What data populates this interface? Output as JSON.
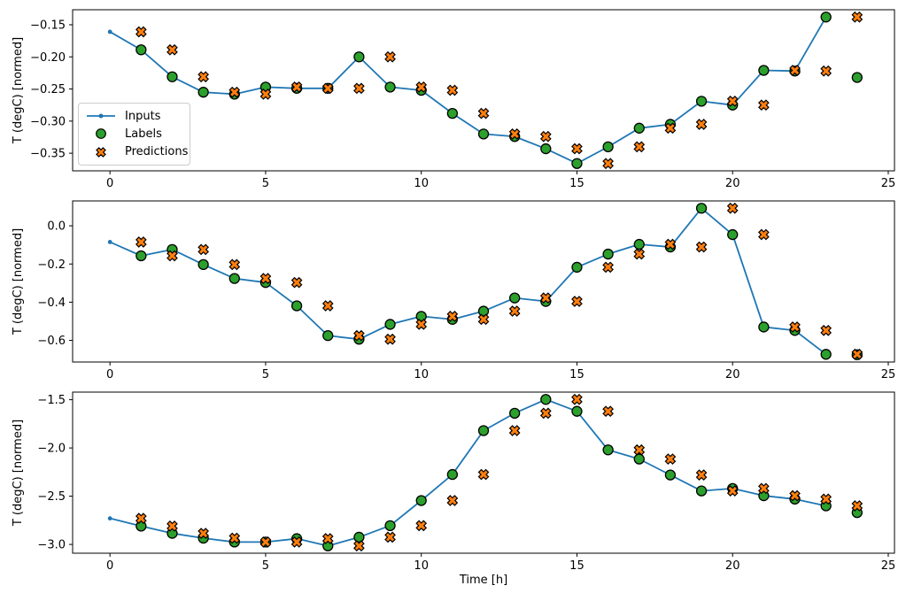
{
  "figure": {
    "xlabel": "Time [h]",
    "ylabel": "T (degC) [normed]",
    "background": "#ffffff",
    "text_color": "#000000",
    "colors": {
      "inputs": "#1f77b4",
      "labels": "#2ca02c",
      "predictions": "#ff7f0e",
      "marker_edge": "#000000",
      "spine": "#000000",
      "legend_border": "#cccccc"
    },
    "legend": {
      "visible": true,
      "position": "lower left of subplot 1",
      "items": [
        {
          "label": "Inputs",
          "marker": "line-with-dot"
        },
        {
          "label": "Labels",
          "marker": "circle"
        },
        {
          "label": "Predictions",
          "marker": "X"
        }
      ]
    }
  },
  "chart_data": [
    {
      "type": "line",
      "title": "",
      "xlabel": "",
      "ylabel": "T (degC) [normed]",
      "grid": false,
      "xlim": [
        -1.2,
        25.2
      ],
      "ylim": [
        -0.377,
        -0.127
      ],
      "x_ticks": [
        0,
        5,
        10,
        15,
        20,
        25
      ],
      "x_tick_labels": [
        "0",
        "5",
        "10",
        "15",
        "20",
        "25"
      ],
      "y_ticks": [
        -0.15,
        -0.2,
        -0.25,
        -0.3,
        -0.35
      ],
      "y_tick_labels": [
        "−0.15",
        "−0.20",
        "−0.25",
        "−0.30",
        "−0.35"
      ],
      "legend": true,
      "series": [
        {
          "name": "Inputs",
          "marker": "dot-line",
          "color": "#1f77b4",
          "x": [
            0,
            1,
            2,
            3,
            4,
            5,
            6,
            7,
            8,
            9,
            10,
            11,
            12,
            13,
            14,
            15,
            16,
            17,
            18,
            19,
            20,
            21,
            22,
            23
          ],
          "y": [
            -0.161,
            -0.189,
            -0.231,
            -0.255,
            -0.258,
            -0.247,
            -0.249,
            -0.249,
            -0.2,
            -0.247,
            -0.252,
            -0.288,
            -0.32,
            -0.324,
            -0.343,
            -0.366,
            -0.34,
            -0.311,
            -0.305,
            -0.269,
            -0.275,
            -0.221,
            -0.222,
            -0.138
          ]
        },
        {
          "name": "Labels",
          "marker": "circle",
          "color": "#2ca02c",
          "x": [
            1,
            2,
            3,
            4,
            5,
            6,
            7,
            8,
            9,
            10,
            11,
            12,
            13,
            14,
            15,
            16,
            17,
            18,
            19,
            20,
            21,
            22,
            23,
            24
          ],
          "y": [
            -0.189,
            -0.231,
            -0.255,
            -0.258,
            -0.247,
            -0.249,
            -0.249,
            -0.2,
            -0.247,
            -0.252,
            -0.288,
            -0.32,
            -0.324,
            -0.343,
            -0.366,
            -0.34,
            -0.311,
            -0.305,
            -0.269,
            -0.275,
            -0.221,
            -0.222,
            -0.138,
            -0.232
          ]
        },
        {
          "name": "Predictions",
          "marker": "X",
          "color": "#ff7f0e",
          "x": [
            1,
            2,
            3,
            4,
            5,
            6,
            7,
            8,
            9,
            10,
            11,
            12,
            13,
            14,
            15,
            16,
            17,
            18,
            19,
            20,
            21,
            22,
            23,
            24
          ],
          "y": [
            -0.161,
            -0.189,
            -0.231,
            -0.255,
            -0.258,
            -0.247,
            -0.249,
            -0.249,
            -0.2,
            -0.247,
            -0.252,
            -0.288,
            -0.32,
            -0.324,
            -0.343,
            -0.366,
            -0.34,
            -0.311,
            -0.305,
            -0.269,
            -0.275,
            -0.221,
            -0.222,
            -0.138
          ]
        }
      ]
    },
    {
      "type": "line",
      "title": "",
      "xlabel": "",
      "ylabel": "T (degC) [normed]",
      "grid": false,
      "xlim": [
        -1.2,
        25.2
      ],
      "ylim": [
        -0.713,
        0.13
      ],
      "x_ticks": [
        0,
        5,
        10,
        15,
        20,
        25
      ],
      "x_tick_labels": [
        "0",
        "5",
        "10",
        "15",
        "20",
        "25"
      ],
      "y_ticks": [
        0.0,
        -0.2,
        -0.4,
        -0.6
      ],
      "y_tick_labels": [
        "0.0",
        "−0.2",
        "−0.4",
        "−0.6"
      ],
      "legend": false,
      "series": [
        {
          "name": "Inputs",
          "marker": "dot-line",
          "color": "#1f77b4",
          "x": [
            0,
            1,
            2,
            3,
            4,
            5,
            6,
            7,
            8,
            9,
            10,
            11,
            12,
            13,
            14,
            15,
            16,
            17,
            18,
            19,
            20,
            21,
            22,
            23
          ],
          "y": [
            -0.085,
            -0.157,
            -0.124,
            -0.203,
            -0.276,
            -0.297,
            -0.419,
            -0.575,
            -0.594,
            -0.516,
            -0.474,
            -0.49,
            -0.447,
            -0.378,
            -0.396,
            -0.217,
            -0.148,
            -0.097,
            -0.111,
            0.092,
            -0.046,
            -0.53,
            -0.548,
            -0.673
          ]
        },
        {
          "name": "Labels",
          "marker": "circle",
          "color": "#2ca02c",
          "x": [
            1,
            2,
            3,
            4,
            5,
            6,
            7,
            8,
            9,
            10,
            11,
            12,
            13,
            14,
            15,
            16,
            17,
            18,
            19,
            20,
            21,
            22,
            23,
            24
          ],
          "y": [
            -0.157,
            -0.124,
            -0.203,
            -0.276,
            -0.297,
            -0.419,
            -0.575,
            -0.594,
            -0.516,
            -0.474,
            -0.49,
            -0.447,
            -0.378,
            -0.396,
            -0.217,
            -0.148,
            -0.097,
            -0.111,
            0.092,
            -0.046,
            -0.53,
            -0.548,
            -0.673,
            -0.675
          ]
        },
        {
          "name": "Predictions",
          "marker": "X",
          "color": "#ff7f0e",
          "x": [
            1,
            2,
            3,
            4,
            5,
            6,
            7,
            8,
            9,
            10,
            11,
            12,
            13,
            14,
            15,
            16,
            17,
            18,
            19,
            20,
            21,
            22,
            23,
            24
          ],
          "y": [
            -0.085,
            -0.157,
            -0.124,
            -0.203,
            -0.276,
            -0.297,
            -0.419,
            -0.575,
            -0.594,
            -0.516,
            -0.474,
            -0.49,
            -0.447,
            -0.378,
            -0.396,
            -0.217,
            -0.148,
            -0.097,
            -0.111,
            0.092,
            -0.046,
            -0.53,
            -0.548,
            -0.673
          ]
        }
      ]
    },
    {
      "type": "line",
      "title": "",
      "xlabel": "Time [h]",
      "ylabel": "T (degC) [normed]",
      "grid": false,
      "xlim": [
        -1.2,
        25.2
      ],
      "ylim": [
        -3.091,
        -1.421
      ],
      "x_ticks": [
        0,
        5,
        10,
        15,
        20,
        25
      ],
      "x_tick_labels": [
        "0",
        "5",
        "10",
        "15",
        "20",
        "25"
      ],
      "y_ticks": [
        -1.5,
        -2.0,
        -2.5,
        -3.0
      ],
      "y_tick_labels": [
        "−1.5",
        "−2.0",
        "−2.5",
        "−3.0"
      ],
      "legend": false,
      "series": [
        {
          "name": "Inputs",
          "marker": "dot-line",
          "color": "#1f77b4",
          "x": [
            0,
            1,
            2,
            3,
            4,
            5,
            6,
            7,
            8,
            9,
            10,
            11,
            12,
            13,
            14,
            15,
            16,
            17,
            18,
            19,
            20,
            21,
            22,
            23
          ],
          "y": [
            -2.73,
            -2.81,
            -2.885,
            -2.935,
            -2.975,
            -2.975,
            -2.94,
            -3.015,
            -2.925,
            -2.805,
            -2.545,
            -2.275,
            -1.82,
            -1.64,
            -1.497,
            -1.62,
            -2.02,
            -2.115,
            -2.28,
            -2.445,
            -2.42,
            -2.495,
            -2.53,
            -2.6
          ]
        },
        {
          "name": "Labels",
          "marker": "circle",
          "color": "#2ca02c",
          "x": [
            1,
            2,
            3,
            4,
            5,
            6,
            7,
            8,
            9,
            10,
            11,
            12,
            13,
            14,
            15,
            16,
            17,
            18,
            19,
            20,
            21,
            22,
            23,
            24
          ],
          "y": [
            -2.81,
            -2.885,
            -2.935,
            -2.975,
            -2.975,
            -2.94,
            -3.015,
            -2.925,
            -2.805,
            -2.545,
            -2.275,
            -1.82,
            -1.64,
            -1.497,
            -1.62,
            -2.02,
            -2.115,
            -2.28,
            -2.445,
            -2.42,
            -2.495,
            -2.53,
            -2.6,
            -2.67
          ]
        },
        {
          "name": "Predictions",
          "marker": "X",
          "color": "#ff7f0e",
          "x": [
            1,
            2,
            3,
            4,
            5,
            6,
            7,
            8,
            9,
            10,
            11,
            12,
            13,
            14,
            15,
            16,
            17,
            18,
            19,
            20,
            21,
            22,
            23,
            24
          ],
          "y": [
            -2.73,
            -2.81,
            -2.885,
            -2.935,
            -2.975,
            -2.975,
            -2.94,
            -3.015,
            -2.925,
            -2.805,
            -2.545,
            -2.275,
            -1.82,
            -1.64,
            -1.497,
            -1.62,
            -2.02,
            -2.115,
            -2.28,
            -2.445,
            -2.42,
            -2.495,
            -2.53,
            -2.6
          ]
        }
      ]
    }
  ]
}
